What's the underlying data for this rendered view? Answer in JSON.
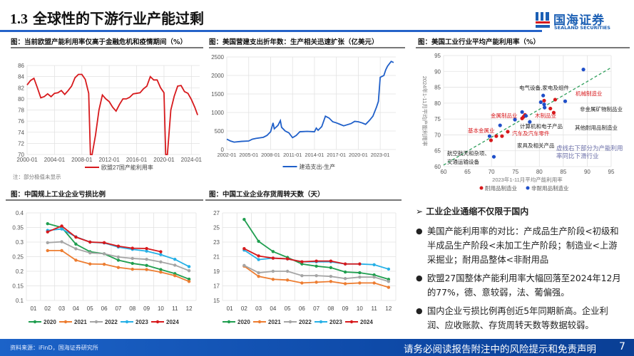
{
  "header": {
    "section_number": "1.3",
    "title": "全球性的下游行业产能过剩"
  },
  "logo": {
    "name_cn": "国海证券",
    "name_en": "SEALAND SECURITIES",
    "colors": {
      "blue": "#1b5fb4",
      "red": "#d7191c"
    }
  },
  "panels": {
    "eu_capacity": {
      "title": "图：当前欧盟产能利用率仅高于金融危机和疫情期间（%）",
      "note": "注：部分极值未显示"
    },
    "us_construction": {
      "title": "图：美国营建支出折年数：生产相关迅速扩张（亿美元）"
    },
    "us_scatter": {
      "title": "图：美国工业行业平均产能利用率（%）"
    },
    "cn_loss": {
      "title": "图：中国规上工业企业亏损比例"
    },
    "cn_inventory": {
      "title": "图：中国工业企业存货周转天数（天）"
    }
  },
  "chart_data": [
    {
      "type": "line",
      "id": "eu_capacity",
      "ylim": [
        70,
        86
      ],
      "yticks": [
        70,
        72,
        74,
        76,
        78,
        80,
        82,
        84,
        86
      ],
      "xticks": [
        "2000-01",
        "2004-01",
        "2008-01",
        "2012-01",
        "2016-01",
        "2020-01",
        "2024-01"
      ],
      "grid": true,
      "legend": "bottom",
      "series": [
        {
          "name": "欧盟27国产能利用率",
          "color": "#d7191c",
          "x": [
            "2000-01",
            "2000-07",
            "2001-01",
            "2001-07",
            "2002-01",
            "2002-07",
            "2003-01",
            "2003-07",
            "2004-01",
            "2004-07",
            "2005-01",
            "2005-07",
            "2006-01",
            "2006-07",
            "2007-01",
            "2007-07",
            "2008-01",
            "2008-07",
            "2009-01",
            "2009-04",
            "2009-07",
            "2010-01",
            "2010-07",
            "2011-01",
            "2011-07",
            "2012-01",
            "2012-07",
            "2013-01",
            "2013-07",
            "2014-01",
            "2014-07",
            "2015-01",
            "2015-07",
            "2016-01",
            "2016-07",
            "2017-01",
            "2017-07",
            "2018-01",
            "2018-07",
            "2019-01",
            "2019-07",
            "2020-01",
            "2020-04",
            "2020-07",
            "2021-01",
            "2021-07",
            "2022-01",
            "2022-07",
            "2023-01",
            "2023-07",
            "2024-01",
            "2024-07",
            "2024-12"
          ],
          "y": [
            82.5,
            83.3,
            83.7,
            82.0,
            80.2,
            80.4,
            80.9,
            80.4,
            81.0,
            81.1,
            81.5,
            80.8,
            81.5,
            82.3,
            83.8,
            84.4,
            84.4,
            83.5,
            81.0,
            70,
            70,
            73.5,
            78.0,
            80.7,
            80.0,
            79.5,
            78.5,
            77.8,
            79.0,
            80.0,
            80.0,
            80.3,
            80.9,
            81.0,
            81.1,
            81.8,
            82.3,
            84.0,
            83.4,
            83.4,
            82.0,
            81.1,
            70,
            70,
            78.0,
            80.5,
            82.3,
            82.4,
            81.3,
            81.0,
            79.9,
            78.5,
            77.1
          ]
        }
      ]
    },
    {
      "type": "line",
      "id": "us_construction",
      "ylim": [
        0,
        2500
      ],
      "yticks": [
        0,
        500,
        1000,
        1500,
        2000,
        2500
      ],
      "xticks": [
        "2002-01",
        "2005-01",
        "2008-01",
        "2011-01",
        "2014-01",
        "2017-01",
        "2020-01",
        "2023-01"
      ],
      "grid": true,
      "legend": "bottom",
      "series": [
        {
          "name": "建造支出-生产",
          "color": "#1f5fc9",
          "x": [
            "2002-01",
            "2002-07",
            "2003-01",
            "2004-01",
            "2005-01",
            "2005-07",
            "2006-01",
            "2007-01",
            "2007-07",
            "2008-01",
            "2008-05",
            "2008-07",
            "2009-01",
            "2009-05",
            "2009-07",
            "2010-01",
            "2010-07",
            "2011-01",
            "2011-07",
            "2012-01",
            "2013-01",
            "2014-01",
            "2014-04",
            "2014-07",
            "2015-01",
            "2015-07",
            "2016-01",
            "2016-07",
            "2017-01",
            "2017-07",
            "2018-01",
            "2019-01",
            "2019-07",
            "2020-01",
            "2020-07",
            "2021-01",
            "2021-07",
            "2022-01",
            "2022-07",
            "2022-10",
            "2023-01",
            "2023-07",
            "2023-10",
            "2024-01",
            "2024-07",
            "2024-11"
          ],
          "y": [
            280,
            230,
            200,
            220,
            230,
            280,
            300,
            330,
            380,
            480,
            720,
            560,
            650,
            780,
            600,
            500,
            450,
            320,
            380,
            480,
            490,
            480,
            580,
            520,
            620,
            900,
            850,
            750,
            720,
            680,
            640,
            700,
            760,
            750,
            720,
            680,
            780,
            900,
            1150,
            1300,
            1950,
            2000,
            2150,
            2250,
            2380,
            2350
          ]
        }
      ]
    },
    {
      "type": "scatter",
      "id": "us_scatter",
      "xlim": [
        60,
        95
      ],
      "ylim": [
        60,
        95
      ],
      "xticks": [
        60,
        65,
        70,
        75,
        80,
        85,
        90,
        95
      ],
      "yticks": [
        60,
        65,
        70,
        75,
        80,
        85,
        90,
        95
      ],
      "xlabel": "2023年1-11月平均产能利用率",
      "ylabel": "2024年1-11月平均产能利用率",
      "grid": true,
      "legend": "bottom",
      "trendline": {
        "from": [
          60,
          60.5
        ],
        "to": [
          95,
          91.2
        ],
        "color": "#2e9e5b"
      },
      "series": [
        {
          "name": "耐用品制造业",
          "color": "#d7191c",
          "points": [
            [
              69.9,
              68.3
            ],
            [
              71,
              69.6
            ],
            [
              72.2,
              69.6
            ],
            [
              73.4,
              71
            ],
            [
              76.4,
              75.2
            ],
            [
              76.7,
              75.7
            ],
            [
              77,
              76.3
            ],
            [
              81,
              80.8
            ],
            [
              83.3,
              81.1
            ],
            [
              82.3,
              78.3
            ],
            [
              83,
              77
            ]
          ]
        },
        {
          "name": "非耐用品制造业",
          "color": "#1f4fc9",
          "points": [
            [
              89.2,
              90.6
            ],
            [
              85.4,
              80.6
            ],
            [
              80.8,
              82.4
            ],
            [
              80.3,
              80.3
            ],
            [
              81,
              79.6
            ],
            [
              81.1,
              78.6
            ],
            [
              76.4,
              77.2
            ],
            [
              77.2,
              76
            ],
            [
              74.9,
              74.8
            ],
            [
              71.8,
              73
            ],
            [
              69.6,
              69.6
            ],
            [
              70.5,
              63.1
            ],
            [
              78,
              74.1
            ]
          ]
        }
      ],
      "annotations": [
        {
          "text": "电气设备,家电及组件",
          "color": "#222"
        },
        {
          "text": "机械制造业",
          "color": "#d7191c"
        },
        {
          "text": "非金属矿物制品业",
          "color": "#222"
        },
        {
          "text": "金属制品业",
          "color": "#d7191c"
        },
        {
          "text": "木制品业",
          "color": "#d7191c"
        },
        {
          "text": "计算机和电子产品",
          "color": "#222"
        },
        {
          "text": "其他耐用品制造业",
          "color": "#222"
        },
        {
          "text": "基本金属业",
          "color": "#d7191c"
        },
        {
          "text": "汽车及汽车零件",
          "color": "#d7191c"
        },
        {
          "text": "家具及相关产品",
          "color": "#222"
        },
        {
          "text": "航空航天和杂项、",
          "color": "#222"
        },
        {
          "text": "交通运输设备",
          "color": "#222"
        },
        {
          "text": "虚线右下部分为产能利用",
          "color": "#6b6fa8"
        },
        {
          "text": "率同比下滑行业",
          "color": "#6b6fa8"
        }
      ]
    },
    {
      "type": "line",
      "id": "cn_loss",
      "ylim": [
        0.1,
        0.4
      ],
      "yticks": [
        0.1,
        0.15,
        0.2,
        0.25,
        0.3,
        0.35,
        0.4
      ],
      "categories": [
        "01",
        "02",
        "03",
        "04",
        "05",
        "06",
        "07",
        "08",
        "09",
        "10",
        "11",
        "12"
      ],
      "grid": true,
      "legend": "bottom",
      "series": [
        {
          "name": "2020",
          "color": "#1f9e4f",
          "values": [
            null,
            0.363,
            0.35,
            0.293,
            0.267,
            0.26,
            0.238,
            0.227,
            0.22,
            0.206,
            0.192,
            0.173
          ]
        },
        {
          "name": "2021",
          "color": "#ed7d31",
          "values": [
            null,
            0.271,
            0.271,
            0.238,
            0.225,
            0.224,
            0.213,
            0.207,
            0.206,
            0.197,
            0.185,
            0.165
          ]
        },
        {
          "name": "2022",
          "color": "#a5a5a5",
          "values": [
            null,
            0.298,
            0.301,
            0.277,
            0.263,
            0.26,
            0.249,
            0.244,
            0.241,
            0.232,
            0.221,
            0.202
          ]
        },
        {
          "name": "2023",
          "color": "#26b0e6",
          "values": [
            null,
            0.34,
            0.345,
            0.318,
            0.3,
            0.297,
            0.283,
            0.275,
            0.269,
            0.257,
            0.241,
            0.216
          ]
        },
        {
          "name": "2024",
          "color": "#d7191c",
          "values": [
            null,
            0.335,
            0.355,
            0.317,
            0.3,
            0.298,
            0.286,
            0.279,
            0.278,
            0.267,
            null,
            null
          ]
        }
      ]
    },
    {
      "type": "line",
      "id": "cn_inventory",
      "ylim": [
        15,
        27
      ],
      "yticks": [
        15,
        17,
        19,
        21,
        23,
        25,
        27
      ],
      "categories": [
        "01",
        "02",
        "03",
        "04",
        "05",
        "06",
        "07",
        "08",
        "09",
        "10",
        "11",
        "12"
      ],
      "grid": true,
      "legend": "bottom",
      "series": [
        {
          "name": "2020",
          "color": "#1f9e4f",
          "values": [
            null,
            26.1,
            23.1,
            21.7,
            20.9,
            20.0,
            19.7,
            19.5,
            18.9,
            18.8,
            18.5,
            17.9
          ]
        },
        {
          "name": "2021",
          "color": "#ed7d31",
          "values": [
            null,
            19.7,
            18.3,
            17.9,
            17.8,
            17.4,
            17.5,
            17.6,
            17.3,
            17.4,
            17.4,
            16.8
          ]
        },
        {
          "name": "2022",
          "color": "#a5a5a5",
          "values": [
            null,
            19.8,
            18.8,
            19.0,
            19.0,
            18.4,
            18.4,
            18.3,
            18.0,
            18.2,
            18.2,
            17.6
          ]
        },
        {
          "name": "2023",
          "color": "#26b0e6",
          "values": [
            null,
            21.9,
            20.6,
            20.8,
            20.7,
            20.3,
            20.3,
            20.3,
            20.0,
            20.0,
            19.9,
            19.3
          ]
        },
        {
          "name": "2024",
          "color": "#d7191c",
          "values": [
            null,
            22.1,
            21.1,
            20.8,
            20.7,
            20.3,
            20.4,
            20.4,
            20.0,
            20.0,
            null,
            null
          ]
        }
      ]
    }
  ],
  "text_panel": {
    "heading_marker": "➢",
    "heading": "工业企业通缩不仅限于国内",
    "bullet_marker": "●",
    "bullets": [
      "美国产能利用率的对比：产成品生产阶段<初级和半成品生产阶段<未加工生产阶段；制造业<上游采掘业；耐用品整体<非耐用品",
      "欧盟27国整体产能利用率大幅回落至2024年12月的77%，德、意较弱，法、葡偏强。",
      "国内企业亏损比例再创近5年同期新高。企业利润、应收账款、存货周转天数等数据较弱。"
    ]
  },
  "footer": {
    "source": "资料来源：iFinD，国海证券研究所",
    "disclaimer": "请务必阅读报告附注中的风险提示和免责声明",
    "page": "7"
  }
}
